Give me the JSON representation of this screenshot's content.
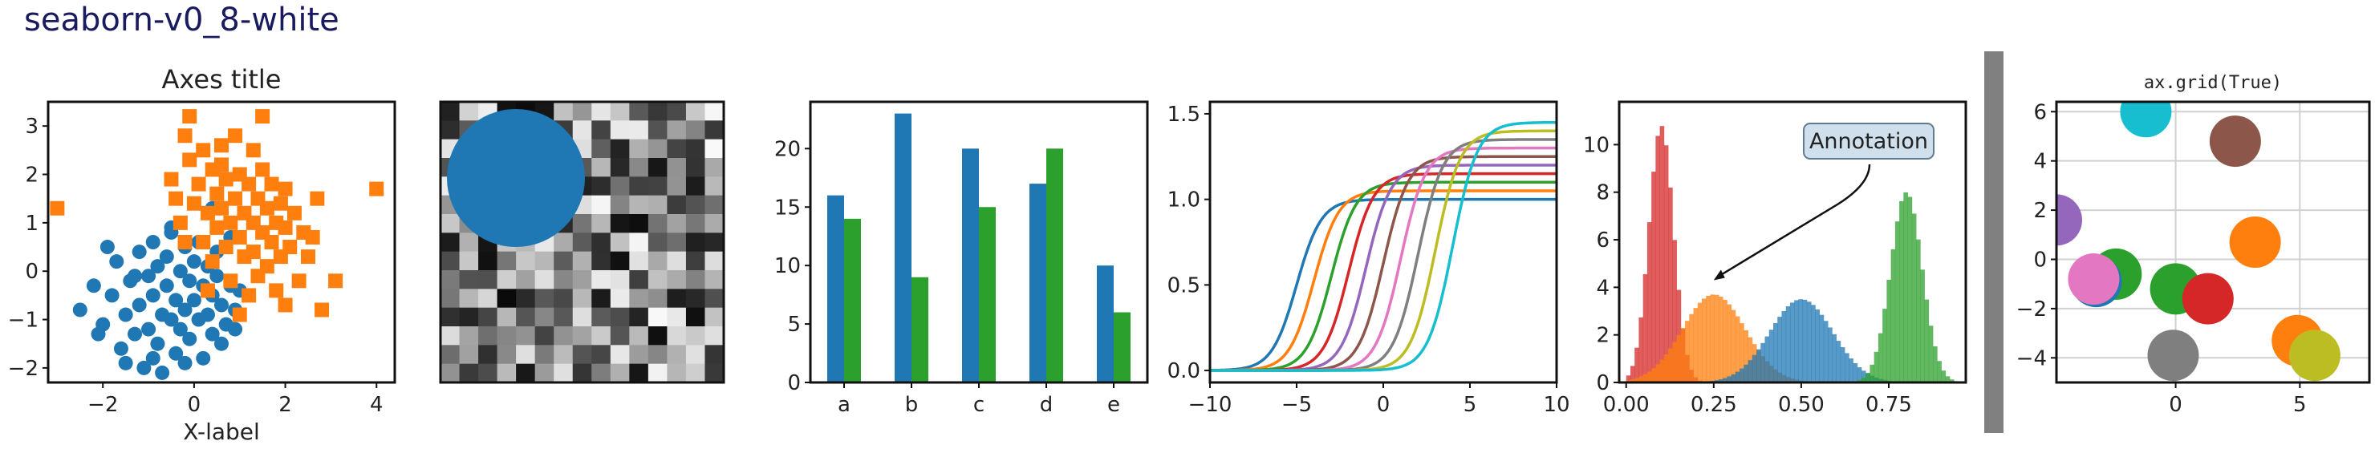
{
  "page_title": "seaborn-v0_8-white",
  "chart_data": [
    {
      "type": "scatter",
      "title": "Axes title",
      "xlabel": "X-label",
      "ylabel": "",
      "xlim": [
        -3.2,
        4.4
      ],
      "ylim": [
        -2.3,
        3.5
      ],
      "xticks": [
        -2,
        0,
        2,
        4
      ],
      "yticks": [
        -2,
        -1,
        0,
        1,
        2,
        3
      ],
      "grid": false,
      "series": [
        {
          "marker": "circle",
          "color": "#1f77b4",
          "points": [
            [
              -2.5,
              -0.8
            ],
            [
              -2.2,
              -0.3
            ],
            [
              -2.0,
              -1.1
            ],
            [
              -1.8,
              -0.5
            ],
            [
              -1.7,
              0.2
            ],
            [
              -1.6,
              -1.6
            ],
            [
              -1.5,
              -0.9
            ],
            [
              -1.4,
              -0.2
            ],
            [
              -1.3,
              -1.3
            ],
            [
              -1.2,
              0.4
            ],
            [
              -1.2,
              -0.7
            ],
            [
              -1.1,
              -2.0
            ],
            [
              -1.0,
              -0.1
            ],
            [
              -1.0,
              -1.2
            ],
            [
              -0.9,
              0.6
            ],
            [
              -0.9,
              -0.5
            ],
            [
              -0.8,
              -1.5
            ],
            [
              -0.8,
              0.1
            ],
            [
              -0.7,
              -0.9
            ],
            [
              -0.7,
              -2.1
            ],
            [
              -0.6,
              0.3
            ],
            [
              -0.6,
              -0.3
            ],
            [
              -0.5,
              -1.0
            ],
            [
              -0.5,
              0.8
            ],
            [
              -0.4,
              -0.6
            ],
            [
              -0.4,
              -1.7
            ],
            [
              -0.3,
              0.0
            ],
            [
              -0.3,
              -1.2
            ],
            [
              -0.2,
              0.5
            ],
            [
              -0.2,
              -0.8
            ],
            [
              -0.1,
              -0.2
            ],
            [
              -0.1,
              -1.4
            ],
            [
              0.0,
              0.2
            ],
            [
              0.0,
              -0.6
            ],
            [
              0.1,
              -1.0
            ],
            [
              0.1,
              0.6
            ],
            [
              0.2,
              -0.3
            ],
            [
              0.2,
              -1.8
            ],
            [
              0.3,
              0.1
            ],
            [
              0.3,
              -0.9
            ],
            [
              0.4,
              -0.5
            ],
            [
              0.4,
              -1.3
            ],
            [
              0.5,
              0.4
            ],
            [
              0.5,
              -0.1
            ],
            [
              0.6,
              -0.7
            ],
            [
              0.7,
              -1.1
            ],
            [
              0.8,
              -0.3
            ],
            [
              0.8,
              0.7
            ],
            [
              0.9,
              -0.8
            ],
            [
              1.0,
              -0.4
            ],
            [
              -1.5,
              -1.9
            ],
            [
              -0.2,
              -1.9
            ],
            [
              -0.9,
              -1.8
            ],
            [
              0.6,
              -1.5
            ],
            [
              -1.9,
              0.5
            ],
            [
              -0.5,
              0.9
            ],
            [
              0.4,
              1.3
            ],
            [
              -1.3,
              -0.1
            ],
            [
              -2.1,
              -1.3
            ],
            [
              0.9,
              -1.2
            ]
          ]
        },
        {
          "marker": "square",
          "color": "#ff7f0e",
          "points": [
            [
              -3.0,
              1.3
            ],
            [
              -0.1,
              3.2
            ],
            [
              -0.2,
              2.8
            ],
            [
              1.5,
              3.2
            ],
            [
              -0.1,
              2.3
            ],
            [
              0.2,
              2.5
            ],
            [
              0.4,
              2.1
            ],
            [
              0.9,
              2.8
            ],
            [
              1.3,
              2.5
            ],
            [
              -0.4,
              1.5
            ],
            [
              -0.3,
              1.0
            ],
            [
              0.0,
              1.4
            ],
            [
              0.1,
              1.8
            ],
            [
              0.2,
              0.6
            ],
            [
              0.3,
              1.2
            ],
            [
              0.4,
              0.2
            ],
            [
              0.5,
              1.6
            ],
            [
              0.5,
              0.9
            ],
            [
              0.6,
              2.2
            ],
            [
              0.6,
              1.3
            ],
            [
              0.7,
              0.5
            ],
            [
              0.7,
              1.9
            ],
            [
              0.8,
              1.0
            ],
            [
              0.8,
              -0.2
            ],
            [
              0.9,
              1.5
            ],
            [
              1.0,
              0.7
            ],
            [
              1.0,
              2.0
            ],
            [
              1.1,
              1.2
            ],
            [
              1.1,
              0.3
            ],
            [
              1.2,
              1.8
            ],
            [
              1.2,
              -0.5
            ],
            [
              1.3,
              1.0
            ],
            [
              1.3,
              0.4
            ],
            [
              1.4,
              1.5
            ],
            [
              1.4,
              -0.1
            ],
            [
              1.5,
              2.1
            ],
            [
              1.5,
              0.8
            ],
            [
              1.6,
              1.3
            ],
            [
              1.6,
              0.1
            ],
            [
              1.7,
              0.6
            ],
            [
              1.7,
              1.8
            ],
            [
              1.8,
              1.0
            ],
            [
              1.8,
              -0.4
            ],
            [
              1.9,
              1.4
            ],
            [
              1.9,
              0.3
            ],
            [
              2.0,
              0.9
            ],
            [
              2.0,
              1.7
            ],
            [
              2.1,
              0.5
            ],
            [
              2.2,
              1.2
            ],
            [
              2.3,
              -0.2
            ],
            [
              2.4,
              0.8
            ],
            [
              2.5,
              0.3
            ],
            [
              2.6,
              0.7
            ],
            [
              2.8,
              -0.8
            ],
            [
              3.1,
              -0.2
            ],
            [
              4.0,
              1.7
            ],
            [
              -0.5,
              1.9
            ],
            [
              0.3,
              -0.4
            ],
            [
              1.0,
              -0.9
            ],
            [
              0.6,
              2.6
            ],
            [
              -0.2,
              0.6
            ],
            [
              2.0,
              -0.7
            ],
            [
              2.7,
              1.5
            ]
          ]
        }
      ]
    },
    {
      "type": "heatmap",
      "title": "",
      "rows": 15,
      "cols": 15,
      "colormap": "gray",
      "circle_color": "#1f77b4"
    },
    {
      "type": "bar",
      "categories": [
        "a",
        "b",
        "c",
        "d",
        "e"
      ],
      "series": [
        {
          "values": [
            16,
            23,
            20,
            17,
            10
          ],
          "color": "#1f77b4"
        },
        {
          "values": [
            14,
            9,
            15,
            20,
            6
          ],
          "color": "#2ca02c"
        }
      ],
      "ylim": [
        0,
        24
      ],
      "yticks": [
        0,
        5,
        10,
        15,
        20
      ],
      "grid": false
    },
    {
      "type": "line",
      "xlim": [
        -10,
        10
      ],
      "ylim": [
        -0.07,
        1.57
      ],
      "xticks": [
        -10,
        -5,
        0,
        5,
        10
      ],
      "yticks": [
        0.0,
        0.5,
        1.0,
        1.5
      ],
      "grid": false,
      "series": [
        {
          "color": "#1f77b4",
          "shift": -5,
          "max": 1.0
        },
        {
          "color": "#ff7f0e",
          "shift": -4,
          "max": 1.05
        },
        {
          "color": "#2ca02c",
          "shift": -3,
          "max": 1.1
        },
        {
          "color": "#d62728",
          "shift": -2,
          "max": 1.15
        },
        {
          "color": "#9467bd",
          "shift": -1,
          "max": 1.2
        },
        {
          "color": "#8c564b",
          "shift": 0,
          "max": 1.25
        },
        {
          "color": "#e377c2",
          "shift": 1,
          "max": 1.3
        },
        {
          "color": "#7f7f7f",
          "shift": 2,
          "max": 1.35
        },
        {
          "color": "#bcbd22",
          "shift": 3,
          "max": 1.4
        },
        {
          "color": "#17becf",
          "shift": 4,
          "max": 1.45
        }
      ]
    },
    {
      "type": "area",
      "subtype": "histogram",
      "xlim": [
        -0.02,
        0.97
      ],
      "ylim": [
        0,
        11.8
      ],
      "xticks": [
        0.0,
        0.25,
        0.5,
        0.75
      ],
      "xtick_labels": [
        "0.00",
        "0.25",
        "0.50",
        "0.75"
      ],
      "yticks": [
        0,
        2,
        4,
        6,
        8,
        10
      ],
      "grid": false,
      "series": [
        {
          "color": "#d62728",
          "center": 0.1,
          "sd": 0.035,
          "peak": 10.8
        },
        {
          "color": "#ff7f0e",
          "center": 0.25,
          "sd": 0.09,
          "peak": 3.7
        },
        {
          "color": "#1f77b4",
          "center": 0.5,
          "sd": 0.09,
          "peak": 3.5
        },
        {
          "color": "#2ca02c",
          "center": 0.8,
          "sd": 0.045,
          "peak": 8.0
        }
      ],
      "annotation": {
        "text": "Annotation",
        "xy": [
          0.25,
          4.3
        ]
      }
    },
    {
      "type": "scatter",
      "title": "ax.grid(True)",
      "xlim": [
        -4.8,
        7.8
      ],
      "ylim": [
        -5.0,
        6.4
      ],
      "xticks": [
        0,
        5
      ],
      "yticks": [
        -4,
        -2,
        0,
        2,
        4,
        6
      ],
      "grid": true,
      "points": [
        {
          "x": -1.2,
          "y": 6.0,
          "color": "#17becf"
        },
        {
          "x": 2.4,
          "y": 4.8,
          "color": "#8c564b"
        },
        {
          "x": -4.8,
          "y": 1.6,
          "color": "#9467bd"
        },
        {
          "x": 3.2,
          "y": 0.7,
          "color": "#ff7f0e"
        },
        {
          "x": -2.4,
          "y": -0.6,
          "color": "#2ca02c"
        },
        {
          "x": -3.2,
          "y": -0.9,
          "color": "#1f77b4"
        },
        {
          "x": -3.3,
          "y": -0.8,
          "color": "#e377c2"
        },
        {
          "x": 0.0,
          "y": -1.2,
          "color": "#2ca02c"
        },
        {
          "x": 1.3,
          "y": -1.6,
          "color": "#d62728"
        },
        {
          "x": 4.9,
          "y": -3.3,
          "color": "#ff7f0e"
        },
        {
          "x": 5.6,
          "y": -3.9,
          "color": "#bcbd22"
        },
        {
          "x": -0.1,
          "y": -3.9,
          "color": "#7f7f7f"
        }
      ]
    }
  ],
  "colors": {
    "divider": "#808080",
    "title": "#1a1a5e"
  }
}
